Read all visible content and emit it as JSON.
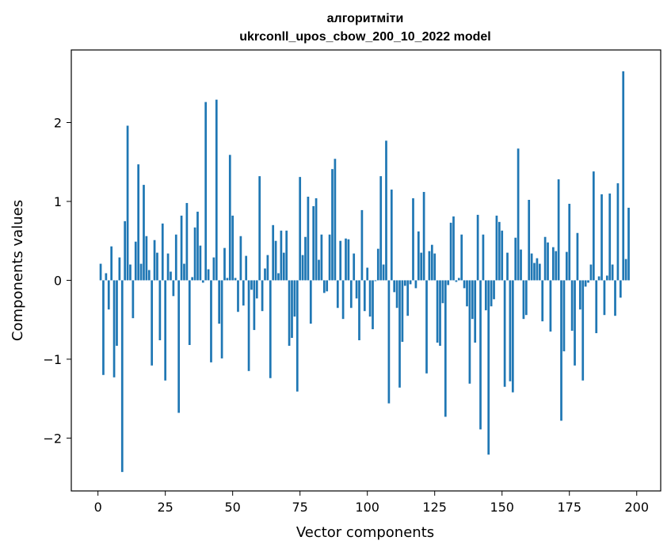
{
  "chart_data": {
    "type": "bar",
    "title_line1": "алгоритміти",
    "title_line2": "ukrconll_upos_cbow_200_10_2022 model",
    "xlabel": "Vector components",
    "ylabel": "Components values",
    "xlim": [
      -9.9,
      208.9
    ],
    "ylim": [
      -2.67,
      2.92
    ],
    "xticks": [
      0,
      25,
      50,
      75,
      100,
      125,
      150,
      175,
      200
    ],
    "yticks": [
      -2,
      -1,
      0,
      1,
      2
    ],
    "ytick_labels": [
      "−2",
      "−1",
      "0",
      "1",
      "2"
    ],
    "bar_color": "#1f77b4",
    "grid": false,
    "values": [
      0.0,
      0.21,
      -1.2,
      0.09,
      -0.37,
      0.43,
      -1.23,
      -0.83,
      0.29,
      -2.43,
      0.75,
      1.96,
      0.2,
      -0.48,
      0.49,
      1.47,
      0.21,
      1.21,
      0.56,
      0.13,
      -1.08,
      0.51,
      0.35,
      -0.76,
      0.72,
      -1.27,
      0.34,
      0.11,
      -0.2,
      0.58,
      -1.68,
      0.82,
      0.21,
      0.98,
      -0.82,
      0.04,
      0.67,
      0.87,
      0.44,
      -0.03,
      2.26,
      0.14,
      -1.04,
      0.29,
      2.29,
      -0.55,
      -0.99,
      0.41,
      0.03,
      1.59,
      0.82,
      0.03,
      -0.4,
      0.56,
      -0.32,
      0.31,
      -1.15,
      -0.12,
      -0.63,
      -0.23,
      1.32,
      -0.39,
      0.15,
      0.32,
      -1.24,
      0.7,
      0.5,
      0.09,
      0.63,
      0.35,
      0.63,
      -0.83,
      -0.73,
      -0.46,
      -1.41,
      1.31,
      0.32,
      0.55,
      1.06,
      -0.55,
      0.94,
      1.04,
      0.26,
      0.58,
      -0.16,
      -0.14,
      0.58,
      1.41,
      1.54,
      -0.35,
      0.5,
      -0.49,
      0.53,
      0.52,
      -0.35,
      0.34,
      -0.23,
      -0.76,
      0.89,
      -0.39,
      0.16,
      -0.46,
      -0.62,
      -0.01,
      0.4,
      1.32,
      0.2,
      1.77,
      -1.56,
      1.15,
      -0.15,
      -0.35,
      -1.36,
      -0.78,
      -0.07,
      -0.45,
      -0.05,
      1.04,
      -0.1,
      0.62,
      0.35,
      1.12,
      -1.18,
      0.37,
      0.45,
      0.34,
      -0.79,
      -0.83,
      -0.29,
      -1.73,
      -0.06,
      0.73,
      0.81,
      -0.02,
      0.03,
      0.58,
      -0.1,
      -0.33,
      -1.31,
      -0.49,
      -0.79,
      0.83,
      -1.89,
      0.58,
      -0.38,
      -2.21,
      -0.33,
      -0.24,
      0.82,
      0.74,
      0.63,
      -1.35,
      0.35,
      -1.28,
      -1.42,
      0.54,
      1.67,
      0.39,
      -0.49,
      -0.44,
      1.02,
      0.34,
      0.22,
      0.28,
      0.21,
      -0.52,
      0.55,
      0.48,
      -0.65,
      0.42,
      0.37,
      1.28,
      -1.78,
      -0.9,
      0.36,
      0.97,
      -0.64,
      -1.08,
      0.6,
      -0.37,
      -1.27,
      -0.08,
      -0.03,
      0.2,
      1.38,
      -0.67,
      0.05,
      1.09,
      -0.44,
      0.06,
      1.1,
      0.2,
      -0.45,
      1.23,
      -0.22,
      2.65,
      0.27,
      0.92
    ]
  }
}
